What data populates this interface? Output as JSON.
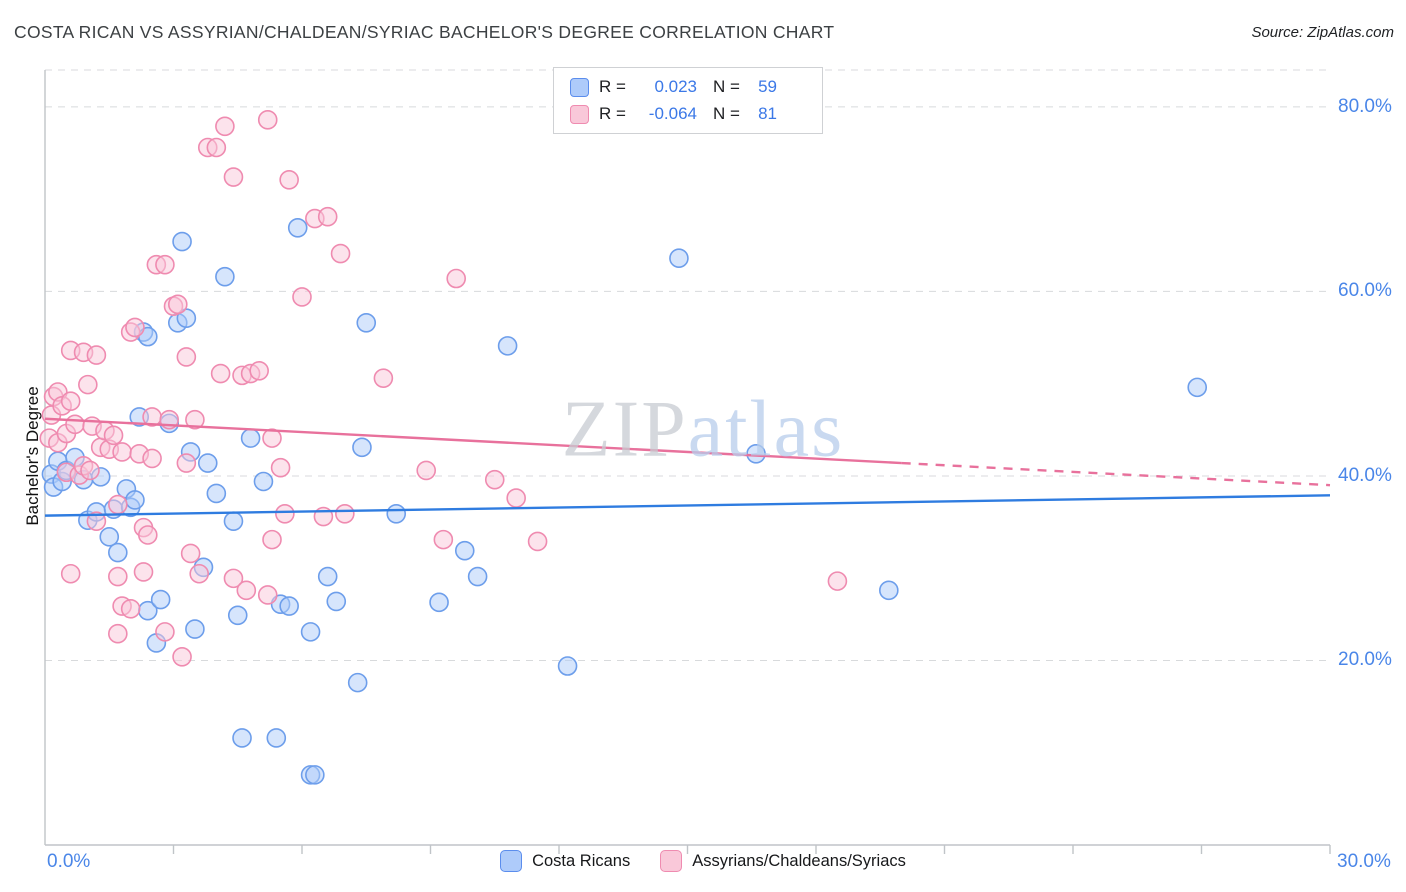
{
  "header": {
    "title": "COSTA RICAN VS ASSYRIAN/CHALDEAN/SYRIAC BACHELOR'S DEGREE CORRELATION CHART",
    "source": "Source: ZipAtlas.com"
  },
  "axes": {
    "y_title": "Bachelor's Degree",
    "x_min_label": "0.0%",
    "x_max_label": "30.0%"
  },
  "watermark": {
    "part1": "ZIP",
    "part2": "atlas"
  },
  "legend_box": {
    "rows": [
      {
        "r_label": "R =",
        "r_value": "0.023",
        "n_label": "N =",
        "n_value": "59",
        "fill": "#aecbfa",
        "border": "#5b8ded"
      },
      {
        "r_label": "R =",
        "r_value": "-0.064",
        "n_label": "N =",
        "n_value": "81",
        "fill": "#f9c8d9",
        "border": "#ef8bb0"
      }
    ]
  },
  "bottom_legend": [
    {
      "label": "Costa Ricans",
      "fill": "#aecbfa",
      "border": "#5b8ded"
    },
    {
      "label": "Assyrians/Chaldeans/Syriacs",
      "fill": "#f9c8d9",
      "border": "#ef8bb0"
    }
  ],
  "chart_data": {
    "type": "scatter",
    "title": "COSTA RICAN VS ASSYRIAN/CHALDEAN/SYRIAC BACHELOR'S DEGREE CORRELATION CHART",
    "xlabel": "",
    "ylabel": "Bachelor's Degree",
    "xlim": [
      0,
      30
    ],
    "ylim": [
      0,
      84
    ],
    "x_tick_step": 3,
    "grid_y": [
      20,
      40,
      60,
      80,
      84
    ],
    "y_ticks": [
      {
        "v": 80,
        "label": "80.0%"
      },
      {
        "v": 60,
        "label": "60.0%"
      },
      {
        "v": 40,
        "label": "40.0%"
      },
      {
        "v": 20,
        "label": "20.0%"
      }
    ],
    "colors": {
      "axis": "#c0c4c8",
      "grid": "#d8dadc",
      "tick_label": "#4a86e8",
      "blue_stroke": "#6d9eeb",
      "blue_fill": "#aecbfa",
      "pink_stroke": "#ef8bb0",
      "pink_fill": "#f9c8d9",
      "blue_trend": "#2f7ce0",
      "pink_trend": "#e8719c"
    },
    "series": [
      {
        "id": "costa-ricans",
        "name": "Costa Ricans",
        "R": 0.023,
        "N": 59,
        "stroke": "#6d9eeb",
        "fill": "#aecbfa",
        "points": [
          [
            0.15,
            40.2
          ],
          [
            0.2,
            38.8
          ],
          [
            0.3,
            41.6
          ],
          [
            0.4,
            39.4
          ],
          [
            0.5,
            40.6
          ],
          [
            0.7,
            42.0
          ],
          [
            0.9,
            39.6
          ],
          [
            1.0,
            35.2
          ],
          [
            1.2,
            36.1
          ],
          [
            1.3,
            39.9
          ],
          [
            1.5,
            33.4
          ],
          [
            1.6,
            36.4
          ],
          [
            1.7,
            31.7
          ],
          [
            1.9,
            38.6
          ],
          [
            2.0,
            36.6
          ],
          [
            2.1,
            37.4
          ],
          [
            2.2,
            46.4
          ],
          [
            2.3,
            55.6
          ],
          [
            2.4,
            55.1
          ],
          [
            2.4,
            25.4
          ],
          [
            2.6,
            21.9
          ],
          [
            2.7,
            26.6
          ],
          [
            2.9,
            45.7
          ],
          [
            3.1,
            56.6
          ],
          [
            3.2,
            65.4
          ],
          [
            3.3,
            57.1
          ],
          [
            3.4,
            42.6
          ],
          [
            3.5,
            23.4
          ],
          [
            3.7,
            30.1
          ],
          [
            3.8,
            41.4
          ],
          [
            4.0,
            38.1
          ],
          [
            4.2,
            61.6
          ],
          [
            4.4,
            35.1
          ],
          [
            4.5,
            24.9
          ],
          [
            4.6,
            11.6
          ],
          [
            4.8,
            44.1
          ],
          [
            5.1,
            39.4
          ],
          [
            5.4,
            11.6
          ],
          [
            5.5,
            26.1
          ],
          [
            5.7,
            25.9
          ],
          [
            5.9,
            66.9
          ],
          [
            6.2,
            7.6
          ],
          [
            6.3,
            7.6
          ],
          [
            6.2,
            23.1
          ],
          [
            6.6,
            29.1
          ],
          [
            6.8,
            26.4
          ],
          [
            7.3,
            17.6
          ],
          [
            7.4,
            43.1
          ],
          [
            7.5,
            56.6
          ],
          [
            8.2,
            35.9
          ],
          [
            9.2,
            26.3
          ],
          [
            9.8,
            31.9
          ],
          [
            10.1,
            29.1
          ],
          [
            10.8,
            54.1
          ],
          [
            12.2,
            19.4
          ],
          [
            14.8,
            63.6
          ],
          [
            16.6,
            42.4
          ],
          [
            19.7,
            27.6
          ],
          [
            26.9,
            49.6
          ]
        ]
      },
      {
        "id": "assyrians-chaldeans-syriacs",
        "name": "Assyrians/Chaldeans/Syriacs",
        "R": -0.064,
        "N": 81,
        "stroke": "#ef8bb0",
        "fill": "#f9c8d9",
        "points": [
          [
            0.1,
            44.1
          ],
          [
            0.15,
            46.6
          ],
          [
            0.2,
            48.6
          ],
          [
            0.3,
            43.6
          ],
          [
            0.3,
            49.1
          ],
          [
            0.4,
            47.6
          ],
          [
            0.5,
            44.6
          ],
          [
            0.5,
            40.4
          ],
          [
            0.6,
            48.1
          ],
          [
            0.6,
            53.6
          ],
          [
            0.6,
            29.4
          ],
          [
            0.7,
            45.6
          ],
          [
            0.8,
            40.1
          ],
          [
            0.9,
            53.4
          ],
          [
            0.9,
            41.1
          ],
          [
            1.0,
            49.9
          ],
          [
            1.05,
            40.6
          ],
          [
            1.1,
            45.4
          ],
          [
            1.2,
            53.1
          ],
          [
            1.2,
            35.1
          ],
          [
            1.3,
            43.1
          ],
          [
            1.4,
            44.9
          ],
          [
            1.5,
            42.9
          ],
          [
            1.6,
            44.4
          ],
          [
            1.7,
            36.9
          ],
          [
            1.7,
            29.1
          ],
          [
            1.7,
            22.9
          ],
          [
            1.8,
            42.6
          ],
          [
            1.8,
            25.9
          ],
          [
            2.0,
            55.6
          ],
          [
            2.0,
            25.6
          ],
          [
            2.1,
            56.1
          ],
          [
            2.2,
            42.4
          ],
          [
            2.3,
            34.4
          ],
          [
            2.3,
            29.6
          ],
          [
            2.4,
            33.6
          ],
          [
            2.5,
            41.9
          ],
          [
            2.5,
            46.4
          ],
          [
            2.6,
            62.9
          ],
          [
            2.8,
            62.9
          ],
          [
            2.8,
            23.1
          ],
          [
            2.9,
            46.1
          ],
          [
            3.0,
            58.4
          ],
          [
            3.1,
            58.6
          ],
          [
            3.2,
            20.4
          ],
          [
            3.3,
            52.9
          ],
          [
            3.3,
            41.4
          ],
          [
            3.4,
            31.6
          ],
          [
            3.5,
            46.1
          ],
          [
            3.6,
            29.4
          ],
          [
            3.8,
            75.6
          ],
          [
            4.0,
            75.6
          ],
          [
            4.1,
            51.1
          ],
          [
            4.2,
            77.9
          ],
          [
            4.4,
            72.4
          ],
          [
            4.4,
            28.9
          ],
          [
            4.6,
            50.9
          ],
          [
            4.7,
            27.6
          ],
          [
            4.8,
            51.1
          ],
          [
            5.0,
            51.4
          ],
          [
            5.2,
            78.6
          ],
          [
            5.2,
            27.1
          ],
          [
            5.3,
            44.1
          ],
          [
            5.3,
            33.1
          ],
          [
            5.5,
            40.9
          ],
          [
            5.6,
            35.9
          ],
          [
            5.7,
            72.1
          ],
          [
            6.0,
            59.4
          ],
          [
            6.3,
            67.9
          ],
          [
            6.6,
            68.1
          ],
          [
            6.5,
            35.6
          ],
          [
            6.9,
            64.1
          ],
          [
            7.0,
            35.9
          ],
          [
            7.9,
            50.6
          ],
          [
            8.9,
            40.6
          ],
          [
            9.3,
            33.1
          ],
          [
            9.6,
            61.4
          ],
          [
            10.5,
            39.6
          ],
          [
            11.0,
            37.6
          ],
          [
            11.5,
            32.9
          ],
          [
            18.5,
            28.6
          ]
        ]
      }
    ],
    "trend_lines": [
      {
        "series": "costa-ricans",
        "color": "#2f7ce0",
        "x1": 0,
        "y1": 35.7,
        "x2": 30,
        "y2": 37.9,
        "dashed": false
      },
      {
        "series": "assyrians-chaldeans-syriacs",
        "color": "#e8719c",
        "x1": 0,
        "y1": 46.2,
        "x2": 20,
        "y2": 41.4,
        "dashed": false
      },
      {
        "series": "assyrians-chaldeans-syriacs",
        "color": "#e8719c",
        "x1": 20,
        "y1": 41.4,
        "x2": 30,
        "y2": 39.0,
        "dashed": true
      }
    ]
  }
}
